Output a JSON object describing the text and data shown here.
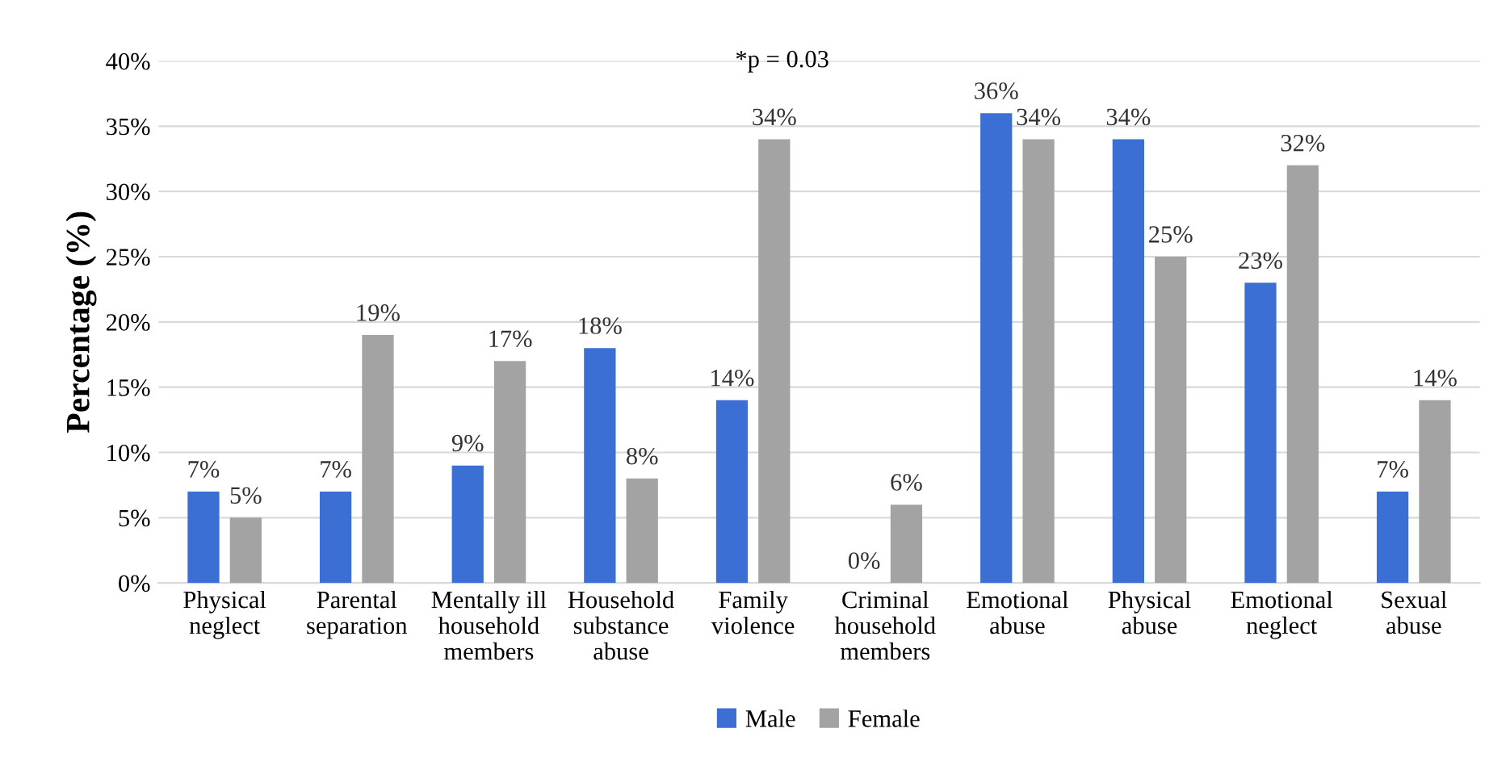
{
  "chart_data": {
    "type": "bar",
    "ylabel": "Percentage (%)",
    "categories": [
      "Physical\nneglect",
      "Parental\nseparation",
      "Mentally ill\nhousehold\nmembers",
      "Household\nsubstance\nabuse",
      "Family\nviolence",
      "Criminal\nhousehold\nmembers",
      "Emotional\nabuse",
      "Physical\nabuse",
      "Emotional\nneglect",
      "Sexual\nabuse"
    ],
    "series": [
      {
        "name": "Male",
        "color": "#3b6fd4",
        "values": [
          7,
          7,
          9,
          18,
          14,
          0,
          36,
          34,
          23,
          7
        ],
        "value_labels": [
          "7%",
          "7%",
          "9%",
          "18%",
          "14%",
          "0%",
          "36%",
          "34%",
          "23%",
          "7%"
        ]
      },
      {
        "name": "Female",
        "color": "#a3a3a3",
        "values": [
          5,
          19,
          17,
          8,
          34,
          6,
          34,
          25,
          32,
          14
        ],
        "value_labels": [
          "5%",
          "19%",
          "17%",
          "8%",
          "34%",
          "6%",
          "34%",
          "25%",
          "32%",
          "14%"
        ]
      }
    ],
    "ylim": [
      0,
      40
    ],
    "yticks": [
      {
        "value": 0,
        "label": "0%"
      },
      {
        "value": 5,
        "label": "5%"
      },
      {
        "value": 10,
        "label": "10%"
      },
      {
        "value": 15,
        "label": "15%"
      },
      {
        "value": 20,
        "label": "20%"
      },
      {
        "value": 25,
        "label": "25%"
      },
      {
        "value": 30,
        "label": "30%"
      },
      {
        "value": 35,
        "label": "35%"
      },
      {
        "value": 40,
        "label": "40%"
      }
    ],
    "grid": "y",
    "legend": "bottom",
    "annotations": [
      "*p = 0.03"
    ]
  }
}
